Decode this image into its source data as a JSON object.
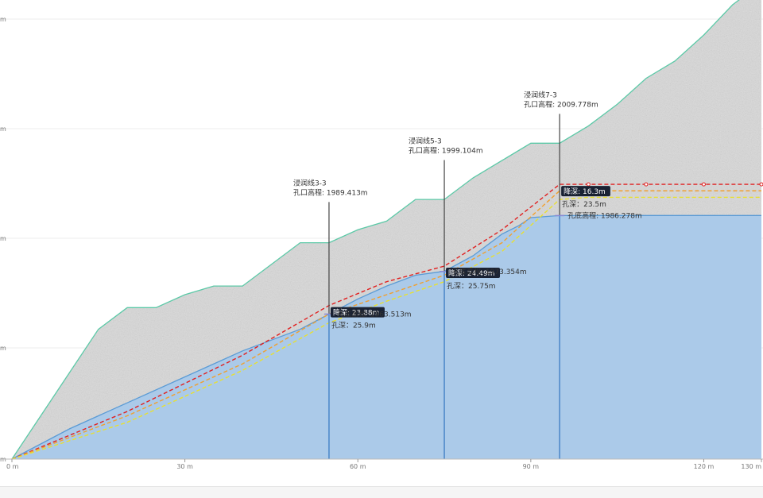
{
  "chart_data": {
    "type": "area",
    "x_unit": "m",
    "x_ticks": [
      {
        "value": 0,
        "label": "0 m"
      },
      {
        "value": 30,
        "label": "30 m"
      },
      {
        "value": 60,
        "label": "60 m"
      },
      {
        "value": 90,
        "label": "90 m"
      },
      {
        "value": 120,
        "label": "120 m"
      },
      {
        "value": 130,
        "label": "130 m"
      }
    ],
    "y_tick_labels": [
      "m",
      "m",
      "m",
      "m",
      "m"
    ],
    "xlim": [
      0,
      130
    ],
    "ylim": [
      1930,
      2035
    ],
    "series": [
      {
        "role": "ground",
        "color": "#5cc9a7",
        "x": [
          0,
          5,
          10,
          15,
          20,
          25,
          30,
          35,
          40,
          45,
          50,
          55,
          60,
          65,
          70,
          75,
          80,
          85,
          90,
          95,
          100,
          105,
          110,
          115,
          120,
          125,
          130
        ],
        "y": [
          1930,
          1940,
          1950,
          1960,
          1965,
          1965,
          1968,
          1970,
          1970,
          1975,
          1980,
          1980,
          1983,
          1985,
          1990,
          1990,
          1995,
          1999,
          2003,
          2003,
          2007,
          2012,
          2018,
          2022,
          2028,
          2035,
          2040
        ]
      },
      {
        "role": "bedrock",
        "color": "#5b9bd5",
        "x": [
          0,
          10,
          20,
          30,
          40,
          50,
          55,
          60,
          65,
          70,
          75,
          80,
          85,
          88,
          90,
          95,
          100,
          110,
          120,
          130
        ],
        "y": [
          1930,
          1937,
          1943,
          1949,
          1955,
          1960,
          1963.5,
          1967,
          1970,
          1972.5,
          1973.4,
          1977,
          1982,
          1984,
          1985.8,
          1986.28,
          1986.3,
          1986.3,
          1986.3,
          1986.3
        ]
      },
      {
        "role": "seepage-red",
        "color": "#e02020",
        "x": [
          0,
          20,
          40,
          55,
          65,
          75,
          85,
          95,
          100,
          110,
          120,
          130
        ],
        "y": [
          1930,
          1941,
          1954,
          1965.5,
          1971,
          1974.6,
          1983,
          1993.5,
          1993.5,
          1993.5,
          1993.5,
          1993.5
        ]
      },
      {
        "role": "seepage-orange",
        "color": "#f0a030",
        "x": [
          0,
          20,
          40,
          55,
          65,
          75,
          85,
          95,
          100,
          110,
          120,
          130
        ],
        "y": [
          1930,
          1940,
          1952,
          1963.5,
          1968,
          1972.5,
          1980,
          1992,
          1992,
          1992,
          1992,
          1992
        ]
      },
      {
        "role": "seepage-yellow",
        "color": "#e8e030",
        "x": [
          0,
          20,
          40,
          55,
          65,
          75,
          85,
          95,
          100,
          110,
          120,
          130
        ],
        "y": [
          1930,
          1938.5,
          1950.5,
          1961.5,
          1966.5,
          1971,
          1978,
          1990,
          1990.5,
          1990.5,
          1990.5,
          1990.5
        ]
      }
    ],
    "boreholes": [
      {
        "x": 55,
        "top": 1989.413,
        "bottom": 1963.513,
        "mark_y": 1965.5,
        "name": "浸润线3-3",
        "top_label": "孔口高程: 1989.413m",
        "depth_badge": "降深: 23.88m",
        "hole_depth": "孔深：25.9m",
        "bottom_label": "孔底高程: 1963.513m"
      },
      {
        "x": 75,
        "top": 1999.104,
        "bottom": 1973.354,
        "mark_y": 1974.6,
        "name": "浸润线5-3",
        "top_label": "孔口高程: 1999.104m",
        "depth_badge": "降深: 24.49m",
        "hole_depth": "孔深：25.75m",
        "bottom_label": "孔底高程: 1973.354m"
      },
      {
        "x": 95,
        "top": 2009.778,
        "bottom": 1986.278,
        "mark_y": 1993.5,
        "name": "浸润线7-3",
        "top_label": "孔口高程: 2009.778m",
        "depth_badge": "降深: 16.3m",
        "hole_depth": "孔深：23.5m",
        "bottom_label": "孔底高程: 1986.278m"
      }
    ],
    "colors": {
      "ground_fill": "#d9d9d9",
      "bedrock_fill": "#a9c9ea",
      "borehole_line": "#444444",
      "badge": "#1a2233"
    }
  }
}
